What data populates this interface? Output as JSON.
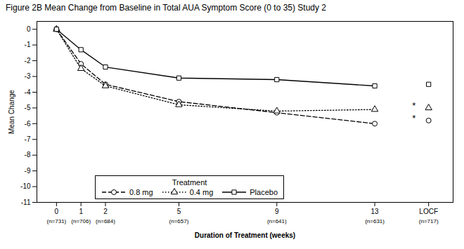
{
  "chart_data": {
    "type": "line",
    "title": "Figure 2B Mean Change from Baseline in Total AUA Symptom Score (0 to 35) Study 2",
    "xlabel": "Duration of Treatment (weeks)",
    "ylabel": "Mean Change",
    "x": [
      0,
      1,
      2,
      5,
      9,
      13
    ],
    "locf_x": 15.2,
    "series": [
      {
        "name": "0.8 mg",
        "color": "black",
        "marker": "circle",
        "line_style": "dashed",
        "values": [
          0.0,
          -2.2,
          -3.5,
          -4.6,
          -5.3,
          -6.0
        ],
        "locf_value": -5.8
      },
      {
        "name": "0.4 mg",
        "color": "black",
        "marker": "triangle",
        "line_style": "dotted",
        "values": [
          0.0,
          -2.5,
          -3.6,
          -4.8,
          -5.2,
          -5.1
        ],
        "locf_value": -5.0
      },
      {
        "name": "Placebo",
        "color": "black",
        "marker": "square",
        "line_style": "solid",
        "values": [
          0.0,
          -1.3,
          -2.4,
          -3.1,
          -3.2,
          -3.6
        ],
        "locf_value": -3.5
      }
    ],
    "xlim": [
      -0.8,
      16.2
    ],
    "xticks": [
      0,
      1,
      2,
      5,
      9,
      13,
      {
        "value": 15.2,
        "label": "LOCF"
      }
    ],
    "ylim": [
      -11,
      0.5
    ],
    "yticks": [
      0,
      -1,
      -2,
      -3,
      -4,
      -5,
      -6,
      -7,
      -8,
      -9,
      -10,
      -11
    ],
    "grid": false,
    "legend": "lower left",
    "legend_title": "Treatment",
    "annotations": [
      {
        "text": "(n=731)",
        "x": 0
      },
      {
        "text": "(n=706)",
        "x": 1
      },
      {
        "text": "(n=684)",
        "x": 2
      },
      {
        "text": "(n=657)",
        "x": 5
      },
      {
        "text": "(n=641)",
        "x": 9
      },
      {
        "text": "(n=631)",
        "x": 13
      },
      {
        "text": "(n=717)",
        "x": 15.2
      },
      {
        "text": "*",
        "x": 14.6,
        "y": -4.85
      },
      {
        "text": "*",
        "x": 14.6,
        "y": -5.65
      }
    ]
  }
}
